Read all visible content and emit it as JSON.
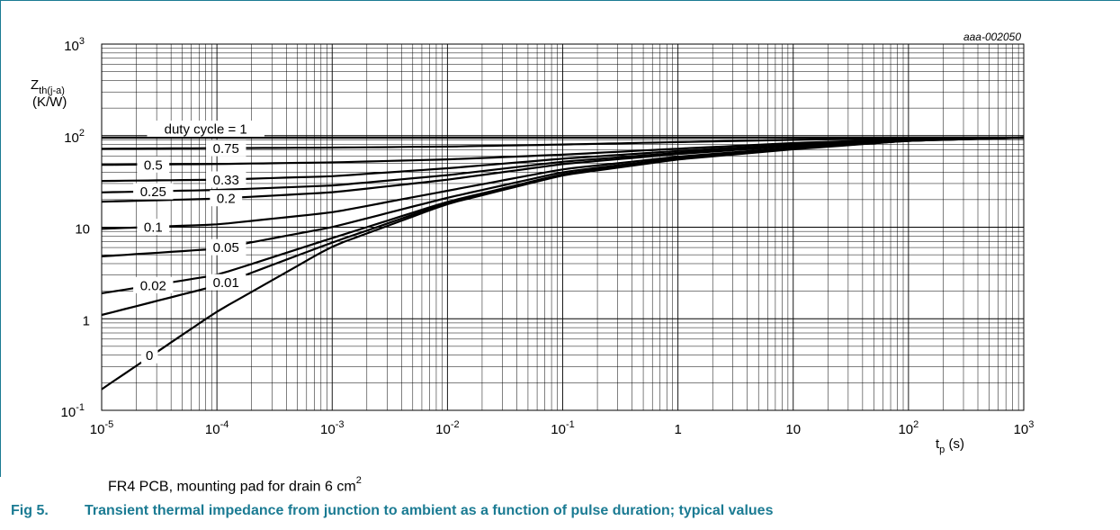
{
  "chart_data": {
    "type": "line",
    "code": "aaa-002050",
    "ylabel_main": "Z",
    "ylabel_sub": "th(j-a)",
    "yunit": "(K/W)",
    "xlabel_main": "t",
    "xlabel_sub": "p",
    "xunit": "(s)",
    "x_scale": "log",
    "y_scale": "log",
    "xlim": [
      1e-05,
      1000
    ],
    "ylim": [
      0.1,
      1000
    ],
    "grid": true,
    "x_ticks": [
      {
        "base": "10",
        "exp": "-5"
      },
      {
        "base": "10",
        "exp": "-4"
      },
      {
        "base": "10",
        "exp": "-3"
      },
      {
        "base": "10",
        "exp": "-2"
      },
      {
        "base": "10",
        "exp": "-1"
      },
      {
        "base": "1",
        "exp": ""
      },
      {
        "base": "10",
        "exp": ""
      },
      {
        "base": "10",
        "exp": "2"
      },
      {
        "base": "10",
        "exp": "3"
      }
    ],
    "y_ticks": [
      {
        "base": "10",
        "exp": "-1"
      },
      {
        "base": "1",
        "exp": ""
      },
      {
        "base": "10",
        "exp": ""
      },
      {
        "base": "10",
        "exp": "2"
      },
      {
        "base": "10",
        "exp": "3"
      }
    ],
    "series": [
      {
        "name": "duty cycle = 1",
        "x": [
          1e-05,
          1000
        ],
        "y": [
          95,
          95
        ]
      },
      {
        "name": "0.75",
        "x": [
          1e-05,
          0.0001,
          0.001,
          0.01,
          0.1,
          1,
          10,
          100,
          1000
        ],
        "y": [
          72,
          73,
          74,
          76,
          80,
          85,
          90,
          94,
          95
        ]
      },
      {
        "name": "0.5",
        "x": [
          1e-05,
          0.0001,
          0.001,
          0.01,
          0.1,
          1,
          10,
          100,
          1000
        ],
        "y": [
          48,
          49,
          51,
          55,
          62,
          72,
          83,
          92,
          95
        ]
      },
      {
        "name": "0.33",
        "x": [
          1e-05,
          0.0001,
          0.001,
          0.01,
          0.1,
          1,
          10,
          100,
          1000
        ],
        "y": [
          32,
          33,
          36,
          44,
          56,
          68,
          80,
          91,
          95
        ]
      },
      {
        "name": "0.25",
        "x": [
          1e-05,
          0.0001,
          0.001,
          0.01,
          0.1,
          1,
          10,
          100,
          1000
        ],
        "y": [
          24,
          25.5,
          28.5,
          37,
          52,
          65,
          78,
          90,
          95
        ]
      },
      {
        "name": "0.2",
        "x": [
          1e-05,
          0.0001,
          0.001,
          0.01,
          0.1,
          1,
          10,
          100,
          1000
        ],
        "y": [
          19,
          20.5,
          24,
          33,
          49,
          63,
          77,
          90,
          95
        ]
      },
      {
        "name": "0.1",
        "x": [
          1e-05,
          0.0001,
          0.001,
          0.01,
          0.1,
          1,
          10,
          100,
          1000
        ],
        "y": [
          9.6,
          10.7,
          14.5,
          25,
          43,
          59,
          74,
          89,
          95
        ]
      },
      {
        "name": "0.05",
        "x": [
          1e-05,
          0.0001,
          0.001,
          0.01,
          0.1,
          1,
          10,
          100,
          1000
        ],
        "y": [
          4.8,
          5.8,
          10,
          21,
          40,
          57,
          73,
          89,
          95
        ]
      },
      {
        "name": "0.02",
        "x": [
          1e-05,
          0.0001,
          0.001,
          0.01,
          0.1,
          1,
          10,
          100,
          1000
        ],
        "y": [
          1.9,
          3.0,
          7.6,
          19,
          38,
          56,
          72,
          88,
          95
        ]
      },
      {
        "name": "0.01",
        "x": [
          1e-05,
          0.0001,
          0.001,
          0.01,
          0.1,
          1,
          10,
          100,
          1000
        ],
        "y": [
          1.1,
          2.3,
          6.8,
          18.5,
          37.5,
          55.5,
          72,
          88,
          95
        ]
      },
      {
        "name": "0",
        "x": [
          1e-05,
          0.0001,
          0.001,
          0.01,
          0.1,
          1,
          10,
          100,
          1000
        ],
        "y": [
          0.17,
          1.2,
          6.2,
          18,
          37,
          55,
          71,
          88,
          95
        ]
      }
    ],
    "annotations": [
      {
        "text": "duty cycle = 1",
        "series": 0
      },
      {
        "text": "0.75",
        "series": 1
      },
      {
        "text": "0.5",
        "series": 2
      },
      {
        "text": "0.33",
        "series": 3
      },
      {
        "text": "0.25",
        "series": 4
      },
      {
        "text": "0.2",
        "series": 5
      },
      {
        "text": "0.1",
        "series": 6
      },
      {
        "text": "0.05",
        "series": 7
      },
      {
        "text": "0.02",
        "series": 8
      },
      {
        "text": "0.01",
        "series": 9
      },
      {
        "text": "0",
        "series": 10
      }
    ]
  },
  "note": {
    "text": "FR4 PCB, mounting pad for drain 6 cm",
    "sup": "2"
  },
  "caption": {
    "number": "Fig 5.",
    "title": "Transient thermal impedance from junction to ambient as a function of pulse duration; typical values"
  }
}
